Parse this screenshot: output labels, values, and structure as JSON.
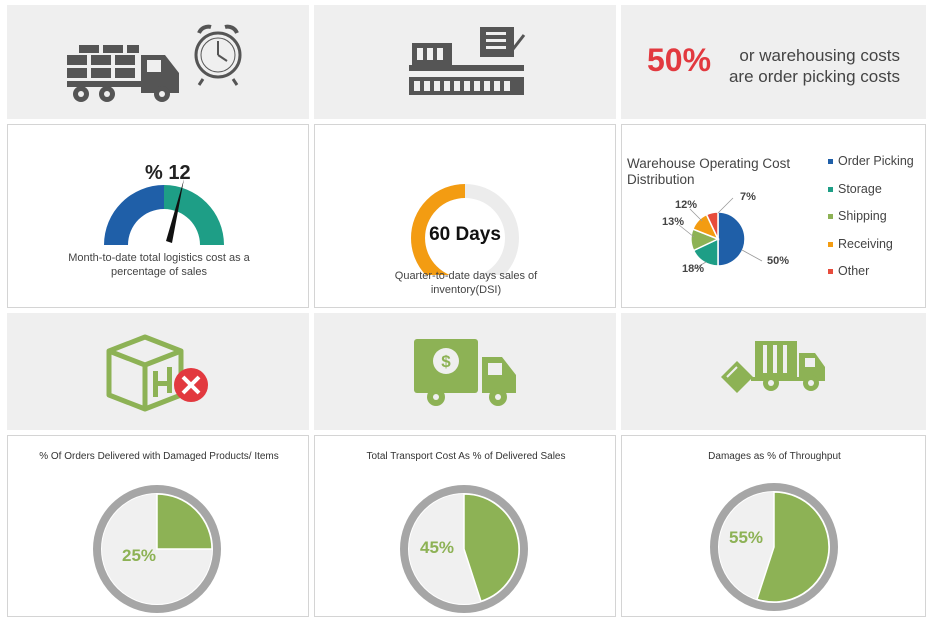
{
  "top_banner": {
    "highlight_value": "50%",
    "line1": "or warehousing costs",
    "line2": "are order picking costs",
    "accent_color": "#e2393f"
  },
  "logistics_cost": {
    "value_label": "% 12",
    "value": 12,
    "caption_line1": "Month-to-date total logistics cost as a",
    "caption_line2": "percentage of sales"
  },
  "dsi": {
    "value_label": "60 Days",
    "fraction": 0.5,
    "caption_line1": "Quarter-to-date days sales of",
    "caption_line2": "inventory(DSI)"
  },
  "colors": {
    "green": "#8db255",
    "blue": "#1f5fa8",
    "teal": "#1e9e86",
    "orange": "#f39c12",
    "red": "#e74c3c",
    "ring": "#a6a6a6",
    "light": "#f0f0f0"
  },
  "chart_data": [
    {
      "type": "pie",
      "title_line1": "Warehouse Operating Cost",
      "title_line2": "Distribution",
      "slices": [
        {
          "name": "Order Picking",
          "value": 50,
          "label": "50%",
          "color": "#1f5fa8"
        },
        {
          "name": "Storage",
          "value": 18,
          "label": "18%",
          "color": "#1e9e86"
        },
        {
          "name": "Shipping",
          "value": 13,
          "label": "13%",
          "color": "#8db255"
        },
        {
          "name": "Receiving",
          "value": 12,
          "label": "12%",
          "color": "#f39c12"
        },
        {
          "name": "Other",
          "value": 7,
          "label": "7%",
          "color": "#e74c3c"
        }
      ],
      "legend": "right"
    },
    {
      "type": "pie",
      "title": "% Of Orders Delivered  with Damaged Products/ Items",
      "value": 25,
      "label": "25%"
    },
    {
      "type": "pie",
      "title": "Total Transport Cost As % of Delivered  Sales",
      "value": 45,
      "label": "45%"
    },
    {
      "type": "pie",
      "title": "Damages  as % of Throughput",
      "value": 55,
      "label": "55%"
    }
  ]
}
